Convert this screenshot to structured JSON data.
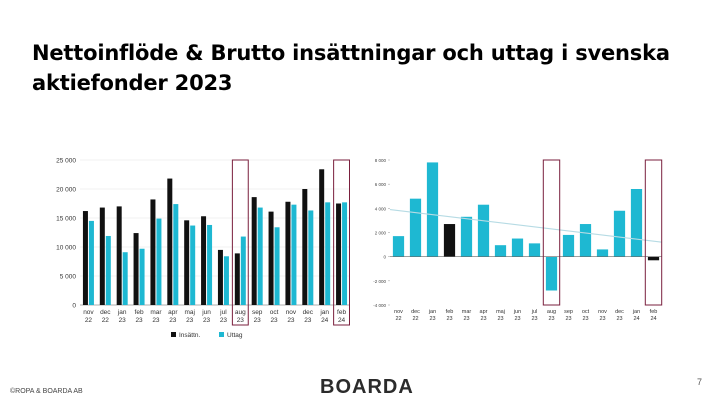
{
  "slide": {
    "title": "Nettoinflöde & Brutto insättningar och uttag i svenska aktiefonder 2023",
    "copyright": "©ROPA & BOARDA AB",
    "logo": "BOARDA",
    "page_number": "7"
  },
  "colors": {
    "black_series": "#111111",
    "cyan_series": "#1eb8d2",
    "highlight_frame": "#7a1f3d",
    "trendline": "#b6dbe4",
    "grid": "#e6e6e6"
  },
  "chart_data": [
    {
      "type": "bar",
      "categories": [
        [
          "nov",
          "22"
        ],
        [
          "dec",
          "22"
        ],
        [
          "jan",
          "23"
        ],
        [
          "feb",
          "23"
        ],
        [
          "mar",
          "23"
        ],
        [
          "apr",
          "23"
        ],
        [
          "maj",
          "23"
        ],
        [
          "jun",
          "23"
        ],
        [
          "jul",
          "23"
        ],
        [
          "aug",
          "23"
        ],
        [
          "sep",
          "23"
        ],
        [
          "oct",
          "23"
        ],
        [
          "nov",
          "23"
        ],
        [
          "dec",
          "23"
        ],
        [
          "jan",
          "24"
        ],
        [
          "feb",
          "24"
        ]
      ],
      "series": [
        {
          "name": "Insättn.",
          "color": "#111111",
          "values": [
            16200,
            16800,
            17000,
            12400,
            18200,
            21800,
            14600,
            15300,
            9500,
            8900,
            18600,
            16100,
            17800,
            20000,
            23400,
            17500
          ]
        },
        {
          "name": "Uttag",
          "color": "#1eb8d2",
          "values": [
            14500,
            11900,
            9100,
            9700,
            14900,
            17400,
            13700,
            13800,
            8400,
            11800,
            16800,
            13400,
            17300,
            16300,
            17700,
            17700
          ]
        }
      ],
      "ylim": [
        0,
        25000
      ],
      "yticks": [
        "0",
        "5 000",
        "10 000",
        "15 000",
        "20 000",
        "25 000"
      ],
      "grid": true,
      "legend": "bottom",
      "highlighted_categories": [
        9,
        15
      ]
    },
    {
      "type": "bar",
      "categories": [
        [
          "nov",
          "22"
        ],
        [
          "dec",
          "22"
        ],
        [
          "jan",
          "23"
        ],
        [
          "feb",
          "23"
        ],
        [
          "mar",
          "23"
        ],
        [
          "apr",
          "23"
        ],
        [
          "maj",
          "23"
        ],
        [
          "jun",
          "23"
        ],
        [
          "jul",
          "23"
        ],
        [
          "aug",
          "23"
        ],
        [
          "sep",
          "23"
        ],
        [
          "oct",
          "23"
        ],
        [
          "nov",
          "23"
        ],
        [
          "dec",
          "23"
        ],
        [
          "jan",
          "24"
        ],
        [
          "feb",
          "24"
        ]
      ],
      "values": [
        1700,
        4800,
        7800,
        2700,
        3300,
        4300,
        950,
        1500,
        1100,
        -2800,
        1800,
        2700,
        600,
        3800,
        5600,
        -300
      ],
      "bar_colors": [
        "#1eb8d2",
        "#1eb8d2",
        "#1eb8d2",
        "#111111",
        "#1eb8d2",
        "#1eb8d2",
        "#1eb8d2",
        "#1eb8d2",
        "#1eb8d2",
        "#1eb8d2",
        "#1eb8d2",
        "#1eb8d2",
        "#1eb8d2",
        "#1eb8d2",
        "#1eb8d2",
        "#111111"
      ],
      "ylim": [
        -4000,
        8000
      ],
      "yticks": [
        "-4 000",
        "-2 000",
        "0",
        "2 000",
        "4 000",
        "6 000",
        "8 000"
      ],
      "trendline": [
        3900,
        1200
      ],
      "grid": false,
      "highlighted_categories": [
        9,
        15
      ]
    }
  ]
}
